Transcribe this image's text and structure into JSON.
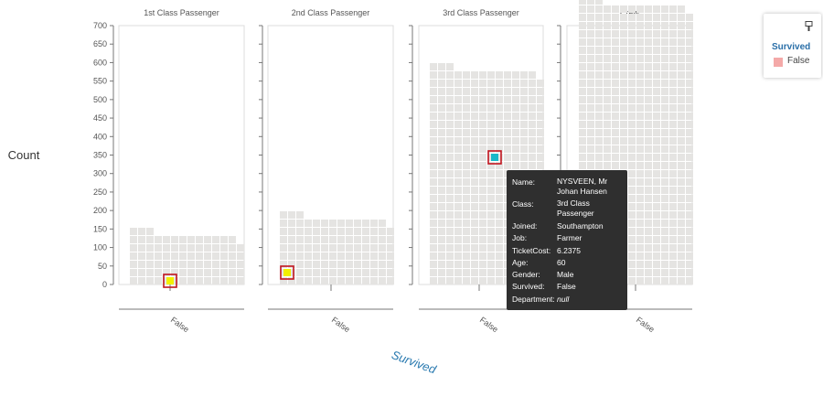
{
  "chart_data": {
    "type": "waffle",
    "y_axis_title": "Count",
    "x_axis_title": "Survived",
    "ylim": [
      0,
      700
    ],
    "y_ticks": [
      0,
      50,
      100,
      150,
      200,
      250,
      300,
      350,
      400,
      450,
      500,
      550,
      600,
      650,
      700
    ],
    "panels": [
      {
        "title": "1st Class Passenger",
        "categories": [
          "False"
        ],
        "values": [
          123
        ]
      },
      {
        "title": "2nd Class Passenger",
        "categories": [
          "False"
        ],
        "values": [
          167
        ]
      },
      {
        "title": "3rd Class Passenger",
        "categories": [
          "False"
        ],
        "values": [
          528
        ]
      },
      {
        "title": "Crew",
        "categories": [
          "False"
        ],
        "values": [
          673
        ]
      }
    ],
    "highlighted": [
      {
        "panel": 0,
        "color": "#f2f000"
      },
      {
        "panel": 1,
        "color": "#f2f000"
      },
      {
        "panel": 2,
        "color": "#19b8c8"
      }
    ],
    "unit_color": "#e5e4e2",
    "highlight_border": "#c0141e"
  },
  "legend": {
    "title": "Survived",
    "items": [
      {
        "label": "False",
        "color": "#f4a9a8"
      }
    ]
  },
  "tooltip": {
    "rows": [
      {
        "key": "Name:",
        "value": "NYSVEEN, Mr Johan Hansen"
      },
      {
        "key": "Class:",
        "value": "3rd Class Passenger"
      },
      {
        "key": "Joined:",
        "value": "Southampton"
      },
      {
        "key": "Job:",
        "value": "Farmer"
      },
      {
        "key": "TicketCost:",
        "value": "6.2375"
      },
      {
        "key": "Age:",
        "value": "60"
      },
      {
        "key": "Gender:",
        "value": "Male"
      },
      {
        "key": "Survived:",
        "value": "False"
      },
      {
        "key": "Department:",
        "value": "null"
      }
    ]
  }
}
